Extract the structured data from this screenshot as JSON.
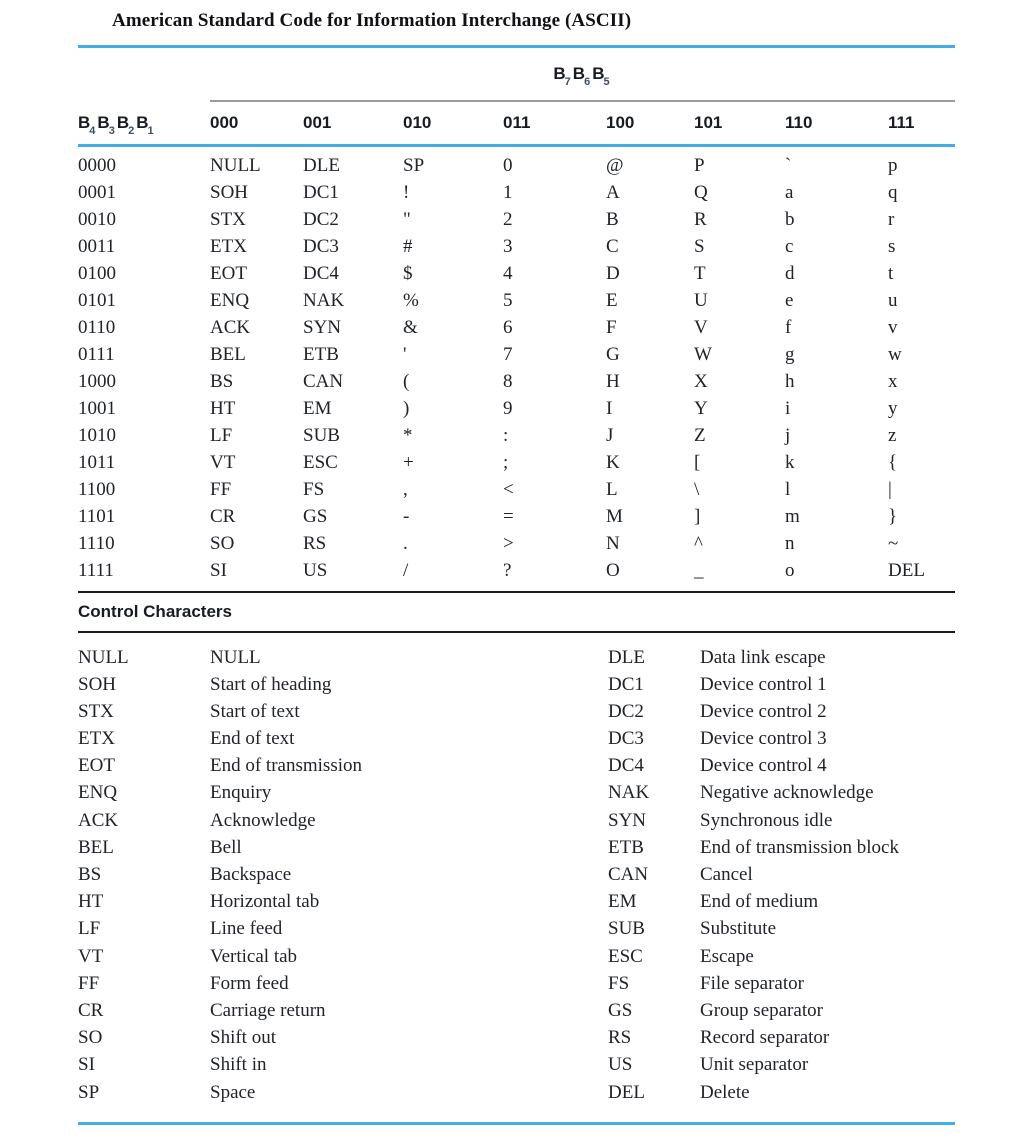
{
  "title": "American Standard Code for Information Interchange (ASCII)",
  "colors": {
    "accent": "#41aee4",
    "rule_gray": "#9b9ba3",
    "rule_dark": "#1c1c1c"
  },
  "ascii_table": {
    "bit_letter": "B",
    "group_header_bits": [
      "7",
      "6",
      "5"
    ],
    "row_header_bits": [
      "4",
      "3",
      "2",
      "1"
    ],
    "column_headers": [
      "000",
      "001",
      "010",
      "011",
      "100",
      "101",
      "110",
      "111"
    ],
    "rows": [
      {
        "bits": "0000",
        "cells": [
          "NULL",
          "DLE",
          "SP",
          "0",
          "@",
          "P",
          "`",
          "p"
        ]
      },
      {
        "bits": "0001",
        "cells": [
          "SOH",
          "DC1",
          "!",
          "1",
          "A",
          "Q",
          "a",
          "q"
        ]
      },
      {
        "bits": "0010",
        "cells": [
          "STX",
          "DC2",
          "\"",
          "2",
          "B",
          "R",
          "b",
          "r"
        ]
      },
      {
        "bits": "0011",
        "cells": [
          "ETX",
          "DC3",
          "#",
          "3",
          "C",
          "S",
          "c",
          "s"
        ]
      },
      {
        "bits": "0100",
        "cells": [
          "EOT",
          "DC4",
          "$",
          "4",
          "D",
          "T",
          "d",
          "t"
        ]
      },
      {
        "bits": "0101",
        "cells": [
          "ENQ",
          "NAK",
          "%",
          "5",
          "E",
          "U",
          "e",
          "u"
        ]
      },
      {
        "bits": "0110",
        "cells": [
          "ACK",
          "SYN",
          "&",
          "6",
          "F",
          "V",
          "f",
          "v"
        ]
      },
      {
        "bits": "0111",
        "cells": [
          "BEL",
          "ETB",
          "'",
          "7",
          "G",
          "W",
          "g",
          "w"
        ]
      },
      {
        "bits": "1000",
        "cells": [
          "BS",
          "CAN",
          "(",
          "8",
          "H",
          "X",
          "h",
          "x"
        ]
      },
      {
        "bits": "1001",
        "cells": [
          "HT",
          "EM",
          ")",
          "9",
          "I",
          "Y",
          "i",
          "y"
        ]
      },
      {
        "bits": "1010",
        "cells": [
          "LF",
          "SUB",
          "*",
          ":",
          "J",
          "Z",
          "j",
          "z"
        ]
      },
      {
        "bits": "1011",
        "cells": [
          "VT",
          "ESC",
          "+",
          ";",
          "K",
          "[",
          "k",
          "{"
        ]
      },
      {
        "bits": "1100",
        "cells": [
          "FF",
          "FS",
          ",",
          "<",
          "L",
          "\\",
          "l",
          "|"
        ]
      },
      {
        "bits": "1101",
        "cells": [
          "CR",
          "GS",
          "-",
          "=",
          "M",
          "]",
          "m",
          "}"
        ]
      },
      {
        "bits": "1110",
        "cells": [
          "SO",
          "RS",
          ".",
          ">",
          "N",
          "^",
          "n",
          "~"
        ]
      },
      {
        "bits": "1111",
        "cells": [
          "SI",
          "US",
          "/",
          "?",
          "O",
          "_",
          "o",
          "DEL"
        ]
      }
    ]
  },
  "control_characters": {
    "heading": "Control Characters",
    "left": [
      {
        "code": "NULL",
        "meaning": "NULL"
      },
      {
        "code": "SOH",
        "meaning": "Start of heading"
      },
      {
        "code": "STX",
        "meaning": "Start of text"
      },
      {
        "code": "ETX",
        "meaning": "End of text"
      },
      {
        "code": "EOT",
        "meaning": "End of transmission"
      },
      {
        "code": "ENQ",
        "meaning": "Enquiry"
      },
      {
        "code": "ACK",
        "meaning": "Acknowledge"
      },
      {
        "code": "BEL",
        "meaning": "Bell"
      },
      {
        "code": "BS",
        "meaning": "Backspace"
      },
      {
        "code": "HT",
        "meaning": "Horizontal tab"
      },
      {
        "code": "LF",
        "meaning": "Line feed"
      },
      {
        "code": "VT",
        "meaning": "Vertical tab"
      },
      {
        "code": "FF",
        "meaning": "Form feed"
      },
      {
        "code": "CR",
        "meaning": "Carriage return"
      },
      {
        "code": "SO",
        "meaning": "Shift out"
      },
      {
        "code": "SI",
        "meaning": "Shift in"
      },
      {
        "code": "SP",
        "meaning": "Space"
      }
    ],
    "right": [
      {
        "code": "DLE",
        "meaning": "Data link escape"
      },
      {
        "code": "DC1",
        "meaning": "Device control 1"
      },
      {
        "code": "DC2",
        "meaning": "Device control 2"
      },
      {
        "code": "DC3",
        "meaning": "Device control 3"
      },
      {
        "code": "DC4",
        "meaning": "Device control 4"
      },
      {
        "code": "NAK",
        "meaning": "Negative acknowledge"
      },
      {
        "code": "SYN",
        "meaning": "Synchronous idle"
      },
      {
        "code": "ETB",
        "meaning": "End of transmission block"
      },
      {
        "code": "CAN",
        "meaning": "Cancel"
      },
      {
        "code": "EM",
        "meaning": "End of medium"
      },
      {
        "code": "SUB",
        "meaning": "Substitute"
      },
      {
        "code": "ESC",
        "meaning": "Escape"
      },
      {
        "code": "FS",
        "meaning": "File separator"
      },
      {
        "code": "GS",
        "meaning": "Group separator"
      },
      {
        "code": "RS",
        "meaning": "Record separator"
      },
      {
        "code": "US",
        "meaning": "Unit separator"
      },
      {
        "code": "DEL",
        "meaning": "Delete"
      }
    ]
  }
}
